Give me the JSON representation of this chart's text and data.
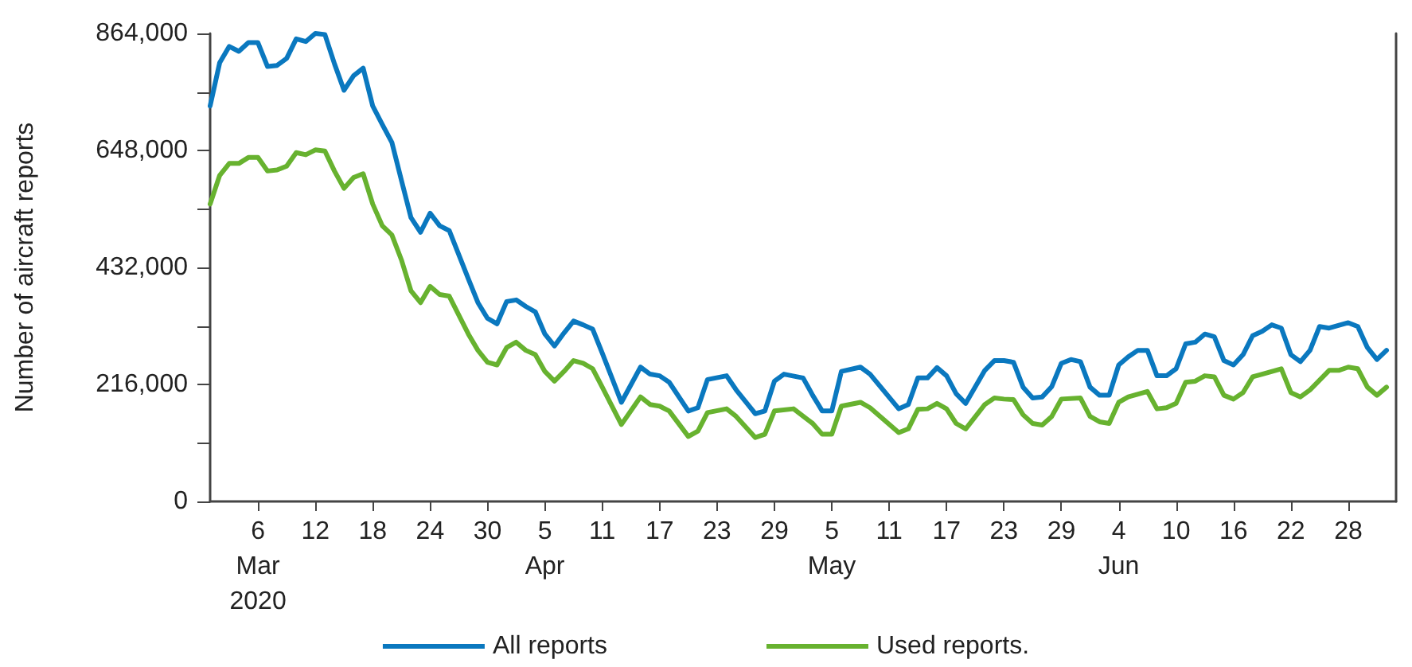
{
  "chart_data": {
    "type": "line",
    "ylabel": "Number of aircraft reports",
    "xlim": [
      "2020-03-01",
      "2020-07-03"
    ],
    "xticks": [
      {
        "value": "2020-03-06",
        "label": "6\nMar\n2020"
      },
      {
        "value": "2020-03-12",
        "label": "12"
      },
      {
        "value": "2020-03-18",
        "label": "18"
      },
      {
        "value": "2020-03-24",
        "label": "24"
      },
      {
        "value": "2020-03-30",
        "label": "30"
      },
      {
        "value": "2020-04-05",
        "label": "5\nApr"
      },
      {
        "value": "2020-04-11",
        "label": "11"
      },
      {
        "value": "2020-04-17",
        "label": "17"
      },
      {
        "value": "2020-04-23",
        "label": "23"
      },
      {
        "value": "2020-04-29",
        "label": "29"
      },
      {
        "value": "2020-05-05",
        "label": "5\nMay"
      },
      {
        "value": "2020-05-11",
        "label": "11"
      },
      {
        "value": "2020-05-17",
        "label": "17"
      },
      {
        "value": "2020-05-23",
        "label": "23"
      },
      {
        "value": "2020-05-29",
        "label": "29"
      },
      {
        "value": "2020-06-04",
        "label": "4\nJun"
      },
      {
        "value": "2020-06-10",
        "label": "10"
      },
      {
        "value": "2020-06-16",
        "label": "16"
      },
      {
        "value": "2020-06-22",
        "label": "22"
      },
      {
        "value": "2020-06-28",
        "label": "28"
      }
    ],
    "ylim": [
      0,
      864000
    ],
    "yticks": [
      {
        "value": 0,
        "label": "0"
      },
      {
        "value": 108000,
        "label": null
      },
      {
        "value": 216000,
        "label": "216,000"
      },
      {
        "value": 324000,
        "label": null
      },
      {
        "value": 432000,
        "label": "432,000"
      },
      {
        "value": 540000,
        "label": null
      },
      {
        "value": 648000,
        "label": "648,000"
      },
      {
        "value": 756000,
        "label": null
      },
      {
        "value": 864000,
        "label": "864,000"
      }
    ],
    "grid": false,
    "legend": "bottom",
    "marker": "none",
    "line_style": "solid",
    "series": [
      {
        "name": "All reports",
        "color": "#0a78bf",
        "x": [
          "2020-03-01",
          "2020-03-02",
          "2020-03-03",
          "2020-03-04",
          "2020-03-05",
          "2020-03-06",
          "2020-03-07",
          "2020-03-08",
          "2020-03-09",
          "2020-03-10",
          "2020-03-11",
          "2020-03-12",
          "2020-03-13",
          "2020-03-14",
          "2020-03-15",
          "2020-03-16",
          "2020-03-17",
          "2020-03-18",
          "2020-03-19",
          "2020-03-20",
          "2020-03-21",
          "2020-03-22",
          "2020-03-23",
          "2020-03-24",
          "2020-03-25",
          "2020-03-26",
          "2020-03-28",
          "2020-03-29",
          "2020-03-30",
          "2020-03-31",
          "2020-04-01",
          "2020-04-02",
          "2020-04-03",
          "2020-04-04",
          "2020-04-05",
          "2020-04-06",
          "2020-04-07",
          "2020-04-08",
          "2020-04-09",
          "2020-04-10",
          "2020-04-11",
          "2020-04-13",
          "2020-04-15",
          "2020-04-16",
          "2020-04-17",
          "2020-04-18",
          "2020-04-20",
          "2020-04-21",
          "2020-04-22",
          "2020-04-24",
          "2020-04-25",
          "2020-04-27",
          "2020-04-28",
          "2020-04-29",
          "2020-04-30",
          "2020-05-02",
          "2020-05-03",
          "2020-05-04",
          "2020-05-05",
          "2020-05-06",
          "2020-05-08",
          "2020-05-09",
          "2020-05-12",
          "2020-05-13",
          "2020-05-14",
          "2020-05-15",
          "2020-05-16",
          "2020-05-17",
          "2020-05-18",
          "2020-05-19",
          "2020-05-21",
          "2020-05-22",
          "2020-05-23",
          "2020-05-24",
          "2020-05-25",
          "2020-05-26",
          "2020-05-27",
          "2020-05-28",
          "2020-05-29",
          "2020-05-30",
          "2020-05-31",
          "2020-06-01",
          "2020-06-02",
          "2020-06-03",
          "2020-06-04",
          "2020-06-05",
          "2020-06-06",
          "2020-06-07",
          "2020-06-08",
          "2020-06-09",
          "2020-06-10",
          "2020-06-11",
          "2020-06-12",
          "2020-06-13",
          "2020-06-14",
          "2020-06-15",
          "2020-06-16",
          "2020-06-17",
          "2020-06-18",
          "2020-06-19",
          "2020-06-20",
          "2020-06-21",
          "2020-06-22",
          "2020-06-23",
          "2020-06-24",
          "2020-06-25",
          "2020-06-26",
          "2020-06-28",
          "2020-06-29",
          "2020-06-30",
          "2020-07-01",
          "2020-07-02"
        ],
        "values": [
          730000,
          810000,
          840000,
          831000,
          847000,
          847000,
          803000,
          805000,
          818000,
          854000,
          849000,
          864000,
          862000,
          808000,
          759000,
          786000,
          800000,
          730000,
          696000,
          663000,
          593000,
          524000,
          497000,
          532000,
          509000,
          500000,
          411000,
          367000,
          338000,
          328000,
          369000,
          372000,
          360000,
          350000,
          309000,
          287000,
          311000,
          333000,
          326000,
          318000,
          274000,
          183000,
          248000,
          235000,
          232000,
          220000,
          167000,
          173000,
          225000,
          232000,
          206000,
          162000,
          167000,
          222000,
          235000,
          228000,
          196000,
          167000,
          167000,
          240000,
          248000,
          235000,
          171000,
          179000,
          228000,
          228000,
          247000,
          232000,
          199000,
          181000,
          242000,
          260000,
          260000,
          257000,
          211000,
          191000,
          193000,
          212000,
          255000,
          262000,
          258000,
          211000,
          196000,
          196000,
          252000,
          267000,
          279000,
          279000,
          232000,
          232000,
          245000,
          291000,
          294000,
          309000,
          304000,
          260000,
          252000,
          271000,
          306000,
          314000,
          326000,
          320000,
          271000,
          258000,
          279000,
          323000,
          320000,
          330000,
          323000,
          284000,
          262000,
          279000
        ]
      },
      {
        "name": "Used reports.",
        "color": "#67b22f",
        "x": [
          "2020-03-01",
          "2020-03-02",
          "2020-03-03",
          "2020-03-04",
          "2020-03-05",
          "2020-03-06",
          "2020-03-07",
          "2020-03-08",
          "2020-03-09",
          "2020-03-10",
          "2020-03-11",
          "2020-03-12",
          "2020-03-13",
          "2020-03-14",
          "2020-03-15",
          "2020-03-16",
          "2020-03-17",
          "2020-03-18",
          "2020-03-19",
          "2020-03-20",
          "2020-03-21",
          "2020-03-22",
          "2020-03-23",
          "2020-03-24",
          "2020-03-25",
          "2020-03-26",
          "2020-03-28",
          "2020-03-29",
          "2020-03-30",
          "2020-03-31",
          "2020-04-01",
          "2020-04-02",
          "2020-04-03",
          "2020-04-04",
          "2020-04-05",
          "2020-04-06",
          "2020-04-07",
          "2020-04-08",
          "2020-04-09",
          "2020-04-10",
          "2020-04-11",
          "2020-04-13",
          "2020-04-15",
          "2020-04-16",
          "2020-04-17",
          "2020-04-18",
          "2020-04-20",
          "2020-04-21",
          "2020-04-22",
          "2020-04-24",
          "2020-04-25",
          "2020-04-27",
          "2020-04-28",
          "2020-04-29",
          "2020-05-01",
          "2020-05-03",
          "2020-05-04",
          "2020-05-05",
          "2020-05-06",
          "2020-05-08",
          "2020-05-09",
          "2020-05-12",
          "2020-05-13",
          "2020-05-14",
          "2020-05-15",
          "2020-05-16",
          "2020-05-17",
          "2020-05-18",
          "2020-05-19",
          "2020-05-21",
          "2020-05-22",
          "2020-05-23",
          "2020-05-24",
          "2020-05-25",
          "2020-05-26",
          "2020-05-27",
          "2020-05-28",
          "2020-05-29",
          "2020-05-31",
          "2020-06-01",
          "2020-06-02",
          "2020-06-03",
          "2020-06-04",
          "2020-06-05",
          "2020-06-07",
          "2020-06-08",
          "2020-06-09",
          "2020-06-10",
          "2020-06-11",
          "2020-06-12",
          "2020-06-13",
          "2020-06-14",
          "2020-06-15",
          "2020-06-16",
          "2020-06-17",
          "2020-06-18",
          "2020-06-19",
          "2020-06-21",
          "2020-06-22",
          "2020-06-23",
          "2020-06-24",
          "2020-06-26",
          "2020-06-27",
          "2020-06-28",
          "2020-06-29",
          "2020-06-30",
          "2020-07-01",
          "2020-07-02"
        ],
        "values": [
          549000,
          602000,
          624000,
          624000,
          635000,
          635000,
          610000,
          612000,
          619000,
          644000,
          640000,
          649000,
          647000,
          610000,
          578000,
          598000,
          605000,
          549000,
          509000,
          492000,
          446000,
          389000,
          367000,
          397000,
          382000,
          379000,
          309000,
          279000,
          257000,
          252000,
          284000,
          294000,
          279000,
          271000,
          240000,
          222000,
          240000,
          260000,
          255000,
          245000,
          211000,
          142000,
          193000,
          179000,
          176000,
          167000,
          120000,
          130000,
          164000,
          171000,
          157000,
          118000,
          124000,
          167000,
          171000,
          144000,
          124000,
          124000,
          176000,
          183000,
          173000,
          127000,
          134000,
          170000,
          171000,
          181000,
          171000,
          144000,
          134000,
          179000,
          191000,
          189000,
          188000,
          160000,
          144000,
          141000,
          157000,
          189000,
          191000,
          157000,
          147000,
          144000,
          183000,
          193000,
          203000,
          171000,
          173000,
          181000,
          220000,
          222000,
          232000,
          230000,
          196000,
          189000,
          201000,
          230000,
          235000,
          245000,
          201000,
          193000,
          206000,
          242000,
          242000,
          248000,
          245000,
          211000,
          196000,
          211000
        ]
      }
    ]
  }
}
